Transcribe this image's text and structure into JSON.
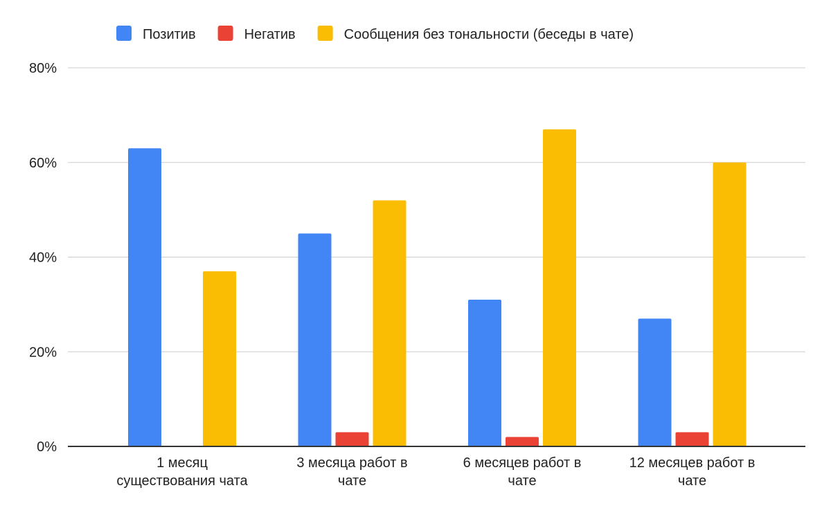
{
  "chart_data": {
    "type": "bar",
    "categories": [
      [
        "1 месяц",
        "существования чата"
      ],
      [
        "3 месяца работ в",
        "чате"
      ],
      [
        "6 месяцев работ в",
        "чате"
      ],
      [
        "12 месяцев работ в",
        "чате"
      ]
    ],
    "series": [
      {
        "name": "Позитив",
        "color": "#4285f4",
        "values": [
          63,
          45,
          31,
          27
        ]
      },
      {
        "name": "Негатив",
        "color": "#ea4335",
        "values": [
          0,
          3,
          2,
          3
        ]
      },
      {
        "name": "Сообщения без тональности (беседы в чате)",
        "color": "#fbbc04",
        "values": [
          37,
          52,
          67,
          60
        ]
      }
    ],
    "ylim": [
      0,
      80
    ],
    "yticks": [
      "0%",
      "20%",
      "40%",
      "60%",
      "80%"
    ],
    "grid": true,
    "legend": "top"
  }
}
